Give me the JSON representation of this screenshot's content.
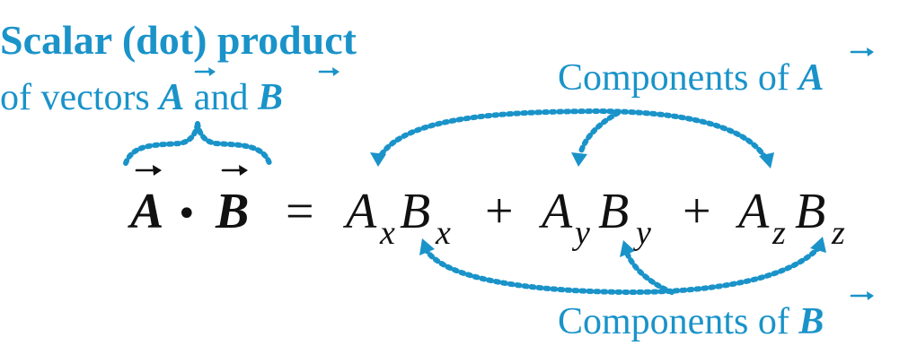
{
  "colors": {
    "accent": "#1a93c9",
    "text": "#111111",
    "background": "#ffffff"
  },
  "header": {
    "title": "Scalar (dot) product",
    "subtitle_prefix": "of vectors ",
    "subtitle_a": "A",
    "subtitle_and": " and ",
    "subtitle_b": "B"
  },
  "label_top": {
    "prefix": "Components of ",
    "vector": "A"
  },
  "label_bottom": {
    "prefix": "Components of ",
    "vector": "B"
  },
  "equation": {
    "lhs_a": "A",
    "dot": "•",
    "lhs_b": "B",
    "equals": "=",
    "term1_a": "A",
    "term1_a_sub": "x",
    "term1_b": "B",
    "term1_b_sub": "x",
    "plus1": "+",
    "term2_a": "A",
    "term2_a_sub": "y",
    "term2_b": "B",
    "term2_b_sub": "y",
    "plus2": "+",
    "term3_a": "A",
    "term3_a_sub": "z",
    "term3_b": "B",
    "term3_b_sub": "z"
  }
}
